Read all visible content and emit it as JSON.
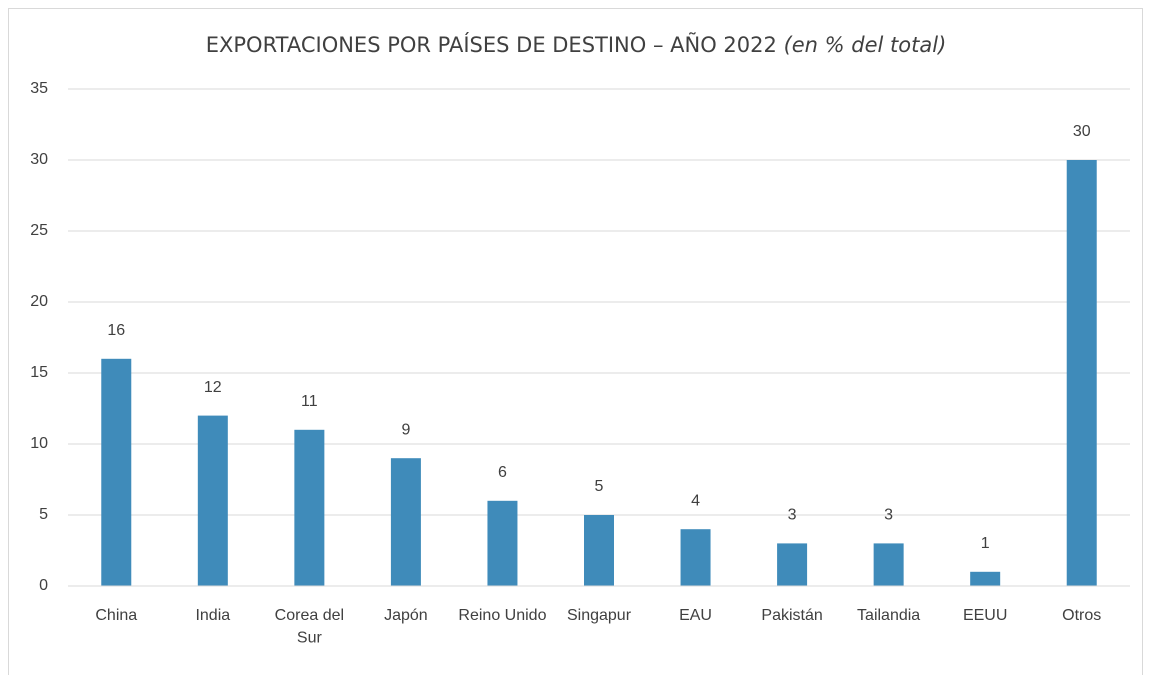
{
  "chart_data": {
    "type": "bar",
    "title": "EXPORTACIONES POR PAÍSES DE DESTINO – AÑO 2022",
    "subtitle": "(en % del total)",
    "categories": [
      "China",
      "India",
      "Corea del Sur",
      "Japón",
      "Reino Unido",
      "Singapur",
      "EAU",
      "Pakistán",
      "Tailandia",
      "EEUU",
      "Otros"
    ],
    "values": [
      16,
      12,
      11,
      9,
      6,
      5,
      4,
      3,
      3,
      1,
      30
    ],
    "color": "#3f8bba",
    "ylim": [
      0,
      35
    ],
    "yticks": [
      0,
      5,
      10,
      15,
      20,
      25,
      30,
      35
    ],
    "grid": true
  }
}
